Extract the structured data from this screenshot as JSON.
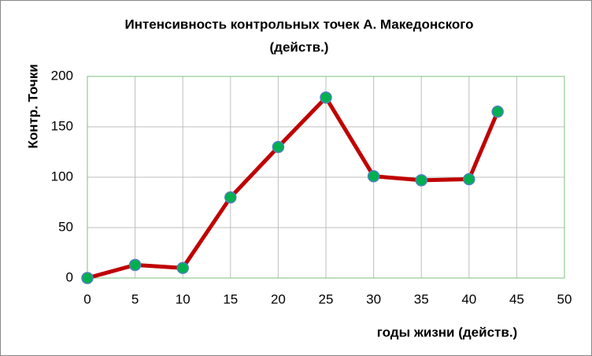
{
  "chart_data": {
    "type": "line",
    "title": [
      "Интенсивность контрольных точек А. Македонского",
      "(действ.)"
    ],
    "x_label": "годы жизни  (действ.)",
    "y_label": "Контр. Точки",
    "x": [
      0,
      5,
      10,
      15,
      20,
      25,
      30,
      35,
      40,
      43
    ],
    "series": [
      {
        "name": "Контр. Точки",
        "color": "#c00000",
        "marker_color": "#00b050",
        "values": [
          0,
          13,
          10,
          80,
          130,
          179,
          101,
          97,
          98,
          165
        ]
      }
    ],
    "xlim": [
      0,
      50
    ],
    "xticks": [
      0,
      5,
      10,
      15,
      20,
      25,
      30,
      35,
      40,
      45,
      50
    ],
    "ylim": [
      0,
      200
    ],
    "yticks": [
      0,
      50,
      100,
      150,
      200
    ],
    "grid": true
  }
}
